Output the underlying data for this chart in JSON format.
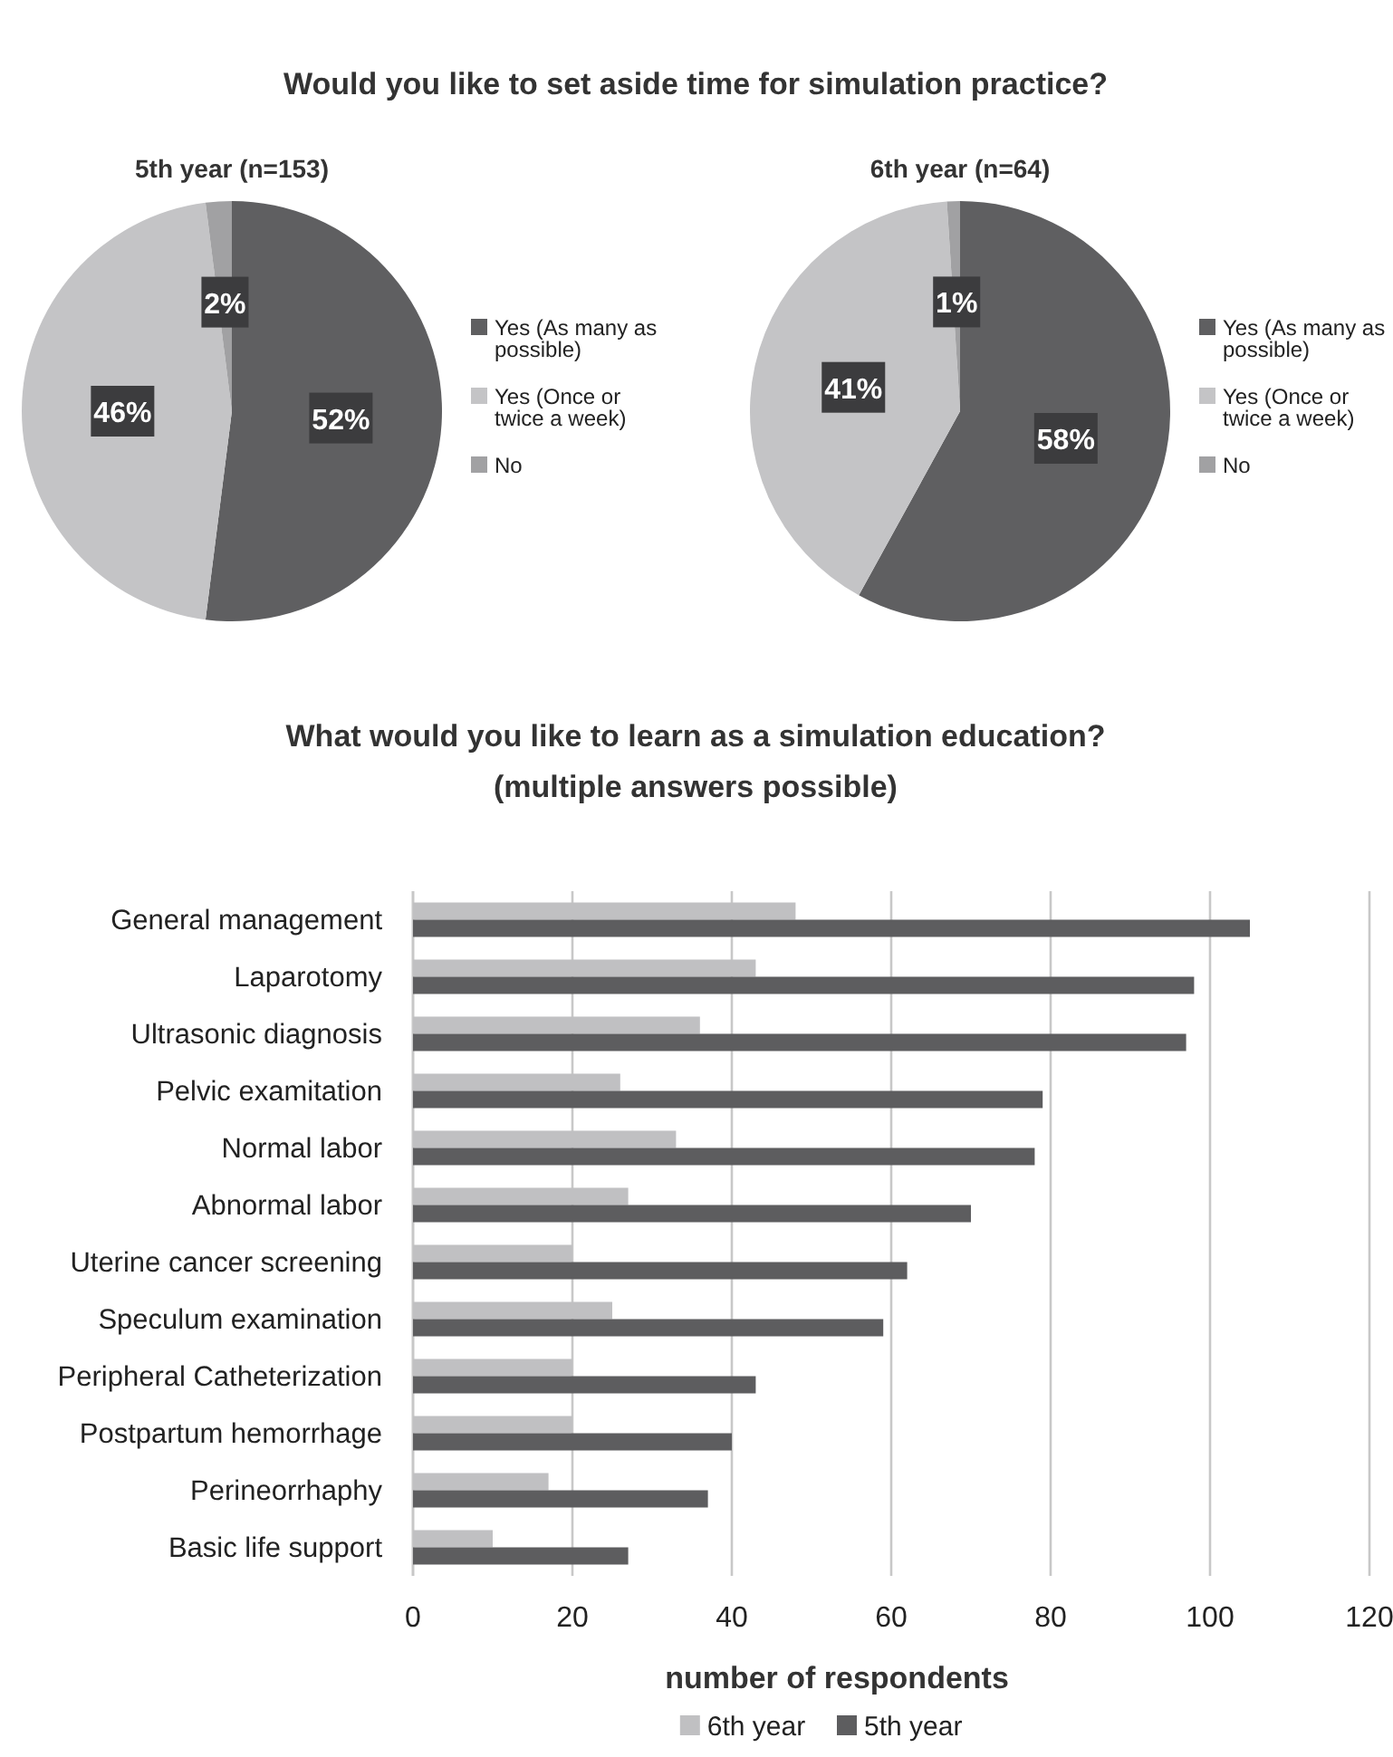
{
  "chart_data": [
    {
      "type": "pie",
      "title": "Would you like to set aside time for simulation practice?",
      "subtitle": "5th year (n=153)",
      "categories": [
        "Yes (As many as possible)",
        "Yes (Once or twice a week)",
        "No"
      ],
      "values": [
        52,
        46,
        2
      ],
      "value_labels": [
        "52%",
        "46%",
        "2%"
      ],
      "colors": [
        "#5f5f61",
        "#c4c4c6",
        "#a1a1a3"
      ],
      "legend": "right"
    },
    {
      "type": "pie",
      "subtitle": "6th year (n=64)",
      "categories": [
        "Yes (As many as possible)",
        "Yes (Once or twice a week)",
        "No"
      ],
      "values": [
        58,
        41,
        1
      ],
      "value_labels": [
        "58%",
        "41%",
        "1%"
      ],
      "colors": [
        "#5f5f61",
        "#c4c4c6",
        "#a1a1a3"
      ],
      "legend": "right"
    },
    {
      "type": "bar",
      "orientation": "horizontal",
      "title": "What would you like to learn as a simulation education?",
      "subtitle": "(multiple answers possible)",
      "xlabel": "number of respondents",
      "categories": [
        "General management",
        "Laparotomy",
        "Ultrasonic diagnosis",
        "Pelvic examitation",
        "Normal labor",
        "Abnormal labor",
        "Uterine cancer screening",
        "Speculum examination",
        "Peripheral Catheterization",
        "Postpartum hemorrhage",
        "Perineorrhaphy",
        "Basic life support"
      ],
      "series": [
        {
          "name": "6th year",
          "color": "#c0c0c2",
          "values": [
            48,
            43,
            36,
            26,
            33,
            27,
            20,
            25,
            20,
            20,
            17,
            10
          ]
        },
        {
          "name": "5th year",
          "color": "#5d5d5f",
          "values": [
            105,
            98,
            97,
            79,
            78,
            70,
            62,
            59,
            43,
            40,
            37,
            27
          ]
        }
      ],
      "xlim": [
        0,
        120
      ],
      "xticks": [
        0,
        20,
        40,
        60,
        80,
        100,
        120
      ],
      "grid": "x",
      "legend": "bottom"
    }
  ]
}
